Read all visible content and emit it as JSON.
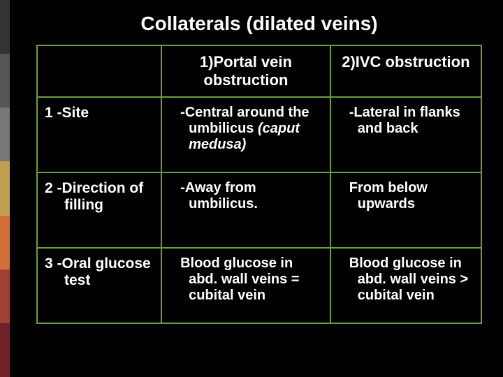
{
  "accent_colors": [
    "#333333",
    "#555555",
    "#777777",
    "#c0a050",
    "#d07038",
    "#a04030",
    "#702028"
  ],
  "title": "Collaterals (dilated veins)",
  "table": {
    "border_color": "#6a9e3e",
    "text_color": "#ffffff",
    "headers": {
      "col1": "",
      "col2": "1)Portal vein obstruction",
      "col3": "2)IVC obstruction"
    },
    "rows": [
      {
        "label": "1 -Site",
        "col2_pre": "-Central around the umbilicus ",
        "col2_italic": "(caput medusa)",
        "col3": "-Lateral in flanks and back"
      },
      {
        "label": "2 -Direction of filling",
        "col2": "-Away from umbilicus.",
        "col3": "From below upwards"
      },
      {
        "label": "3 -Oral glucose test",
        "col2": "Blood glucose in abd. wall veins = cubital vein",
        "col3": "Blood glucose in abd. wall veins > cubital vein"
      }
    ]
  }
}
